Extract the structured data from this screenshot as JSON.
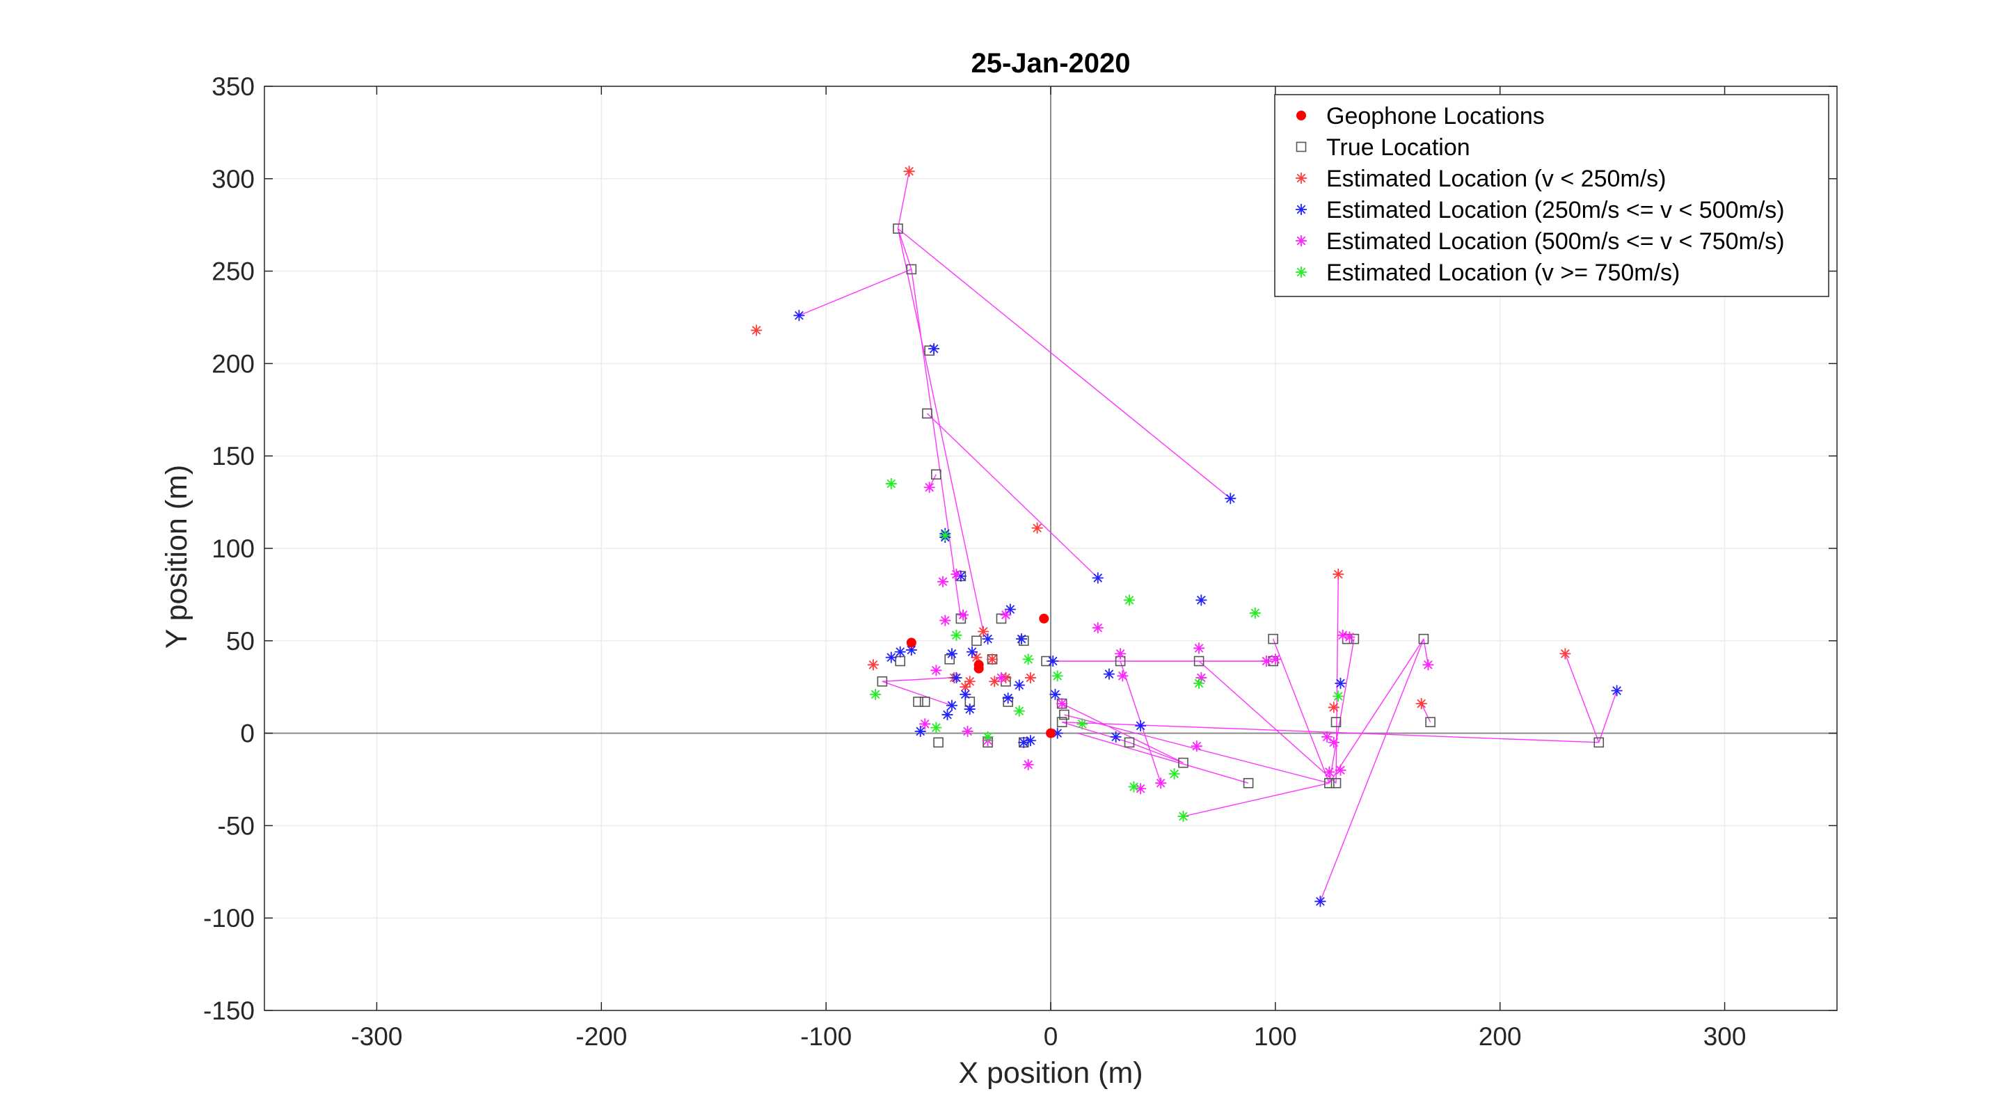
{
  "chart_data": {
    "type": "scatter",
    "title": "25-Jan-2020",
    "xlabel": "X position (m)",
    "ylabel": "Y position (m)",
    "xlim": [
      -350,
      350
    ],
    "ylim": [
      -150,
      350
    ],
    "xticks": [
      -300,
      -200,
      -100,
      0,
      100,
      200,
      300
    ],
    "yticks": [
      -150,
      -100,
      -50,
      0,
      50,
      100,
      150,
      200,
      250,
      300,
      350
    ],
    "grid": true,
    "legend_position": "top-right",
    "colors": {
      "geophone": "#ff0000",
      "true": "#555555",
      "slow": "#ff3b3b",
      "mid": "#2222ff",
      "fast": "#ff22ff",
      "veryfast": "#22ee22",
      "connector": "#ff33ff"
    },
    "legend": [
      {
        "key": "geophone",
        "label": "Geophone Locations"
      },
      {
        "key": "true",
        "label": "True Location"
      },
      {
        "key": "slow",
        "label": "Estimated Location (v < 250m/s)"
      },
      {
        "key": "mid",
        "label": "Estimated Location (250m/s <= v < 500m/s)"
      },
      {
        "key": "fast",
        "label": "Estimated Location (500m/s <= v < 750m/s)"
      },
      {
        "key": "veryfast",
        "label": "Estimated Location (v >= 750m/s)"
      }
    ],
    "geophones": [
      [
        -62,
        49
      ],
      [
        -3,
        62
      ],
      [
        -32,
        37
      ],
      [
        0,
        0
      ],
      [
        -32,
        35
      ]
    ],
    "true_locations": [
      [
        -68,
        273
      ],
      [
        -62,
        251
      ],
      [
        -54,
        207
      ],
      [
        -55,
        173
      ],
      [
        -51,
        140
      ],
      [
        -40,
        85
      ],
      [
        -40,
        62
      ],
      [
        -22,
        62
      ],
      [
        -33,
        50
      ],
      [
        -12,
        50
      ],
      [
        -26,
        40
      ],
      [
        -2,
        39
      ],
      [
        -45,
        40
      ],
      [
        -67,
        39
      ],
      [
        -75,
        28
      ],
      [
        -20,
        28
      ],
      [
        -36,
        17
      ],
      [
        -19,
        17
      ],
      [
        -56,
        17
      ],
      [
        -59,
        17
      ],
      [
        5,
        16
      ],
      [
        5,
        6
      ],
      [
        -50,
        -5
      ],
      [
        -28,
        -5
      ],
      [
        -12,
        -5
      ],
      [
        35,
        -5
      ],
      [
        59,
        -16
      ],
      [
        88,
        -27
      ],
      [
        124,
        -27
      ],
      [
        127,
        -27
      ],
      [
        127,
        6
      ],
      [
        99,
        51
      ],
      [
        132,
        51
      ],
      [
        135,
        51
      ],
      [
        166,
        51
      ],
      [
        169,
        6
      ],
      [
        244,
        -5
      ],
      [
        31,
        39
      ],
      [
        66,
        39
      ],
      [
        99,
        39
      ],
      [
        6,
        10
      ]
    ],
    "estimates": [
      {
        "g": "slow",
        "x": -63,
        "y": 304
      },
      {
        "g": "slow",
        "x": -131,
        "y": 218
      },
      {
        "g": "slow",
        "x": -6,
        "y": 111
      },
      {
        "g": "slow",
        "x": 128,
        "y": 86
      },
      {
        "g": "slow",
        "x": 229,
        "y": 43
      },
      {
        "g": "slow",
        "x": 165,
        "y": 16
      },
      {
        "g": "slow",
        "x": 126,
        "y": 14
      },
      {
        "g": "slow",
        "x": -79,
        "y": 37
      },
      {
        "g": "slow",
        "x": -30,
        "y": 55
      },
      {
        "g": "slow",
        "x": -26,
        "y": 40
      },
      {
        "g": "slow",
        "x": -20,
        "y": 30
      },
      {
        "g": "slow",
        "x": -9,
        "y": 30
      },
      {
        "g": "slow",
        "x": -25,
        "y": 28
      },
      {
        "g": "slow",
        "x": -38,
        "y": 25
      },
      {
        "g": "slow",
        "x": -33,
        "y": 41
      },
      {
        "g": "slow",
        "x": -36,
        "y": 28
      },
      {
        "g": "slow",
        "x": -43,
        "y": 30
      },
      {
        "g": "mid",
        "x": -112,
        "y": 226
      },
      {
        "g": "mid",
        "x": -52,
        "y": 208
      },
      {
        "g": "mid",
        "x": 80,
        "y": 127
      },
      {
        "g": "mid",
        "x": 21,
        "y": 84
      },
      {
        "g": "mid",
        "x": -47,
        "y": 108
      },
      {
        "g": "mid",
        "x": -47,
        "y": 106
      },
      {
        "g": "mid",
        "x": 67,
        "y": 72
      },
      {
        "g": "mid",
        "x": -18,
        "y": 67
      },
      {
        "g": "mid",
        "x": -40,
        "y": 85
      },
      {
        "g": "mid",
        "x": -28,
        "y": 51
      },
      {
        "g": "mid",
        "x": -62,
        "y": 45
      },
      {
        "g": "mid",
        "x": -67,
        "y": 44
      },
      {
        "g": "mid",
        "x": -71,
        "y": 41
      },
      {
        "g": "mid",
        "x": -44,
        "y": 43
      },
      {
        "g": "mid",
        "x": -35,
        "y": 44
      },
      {
        "g": "mid",
        "x": -13,
        "y": 51
      },
      {
        "g": "mid",
        "x": 1,
        "y": 39
      },
      {
        "g": "mid",
        "x": -42,
        "y": 30
      },
      {
        "g": "mid",
        "x": -38,
        "y": 21
      },
      {
        "g": "mid",
        "x": -36,
        "y": 13
      },
      {
        "g": "mid",
        "x": -46,
        "y": 10
      },
      {
        "g": "mid",
        "x": -44,
        "y": 15
      },
      {
        "g": "mid",
        "x": -14,
        "y": 26
      },
      {
        "g": "mid",
        "x": -19,
        "y": 19
      },
      {
        "g": "mid",
        "x": -58,
        "y": 1
      },
      {
        "g": "mid",
        "x": -12,
        "y": -5
      },
      {
        "g": "mid",
        "x": -9,
        "y": -4
      },
      {
        "g": "mid",
        "x": 40,
        "y": 4
      },
      {
        "g": "mid",
        "x": 29,
        "y": -2
      },
      {
        "g": "mid",
        "x": 26,
        "y": 32
      },
      {
        "g": "mid",
        "x": 2,
        "y": 21
      },
      {
        "g": "mid",
        "x": 129,
        "y": 27
      },
      {
        "g": "mid",
        "x": 252,
        "y": 23
      },
      {
        "g": "mid",
        "x": 120,
        "y": -91
      },
      {
        "g": "mid",
        "x": 3,
        "y": 0
      },
      {
        "g": "fast",
        "x": -54,
        "y": 133
      },
      {
        "g": "fast",
        "x": -48,
        "y": 82
      },
      {
        "g": "fast",
        "x": -47,
        "y": 61
      },
      {
        "g": "fast",
        "x": -42,
        "y": 86
      },
      {
        "g": "fast",
        "x": -39,
        "y": 64
      },
      {
        "g": "fast",
        "x": -20,
        "y": 64
      },
      {
        "g": "fast",
        "x": 21,
        "y": 57
      },
      {
        "g": "fast",
        "x": 31,
        "y": 43
      },
      {
        "g": "fast",
        "x": 66,
        "y": 46
      },
      {
        "g": "fast",
        "x": 96,
        "y": 39
      },
      {
        "g": "fast",
        "x": 130,
        "y": 53
      },
      {
        "g": "fast",
        "x": 133,
        "y": 52
      },
      {
        "g": "fast",
        "x": 168,
        "y": 37
      },
      {
        "g": "fast",
        "x": 67,
        "y": 30
      },
      {
        "g": "fast",
        "x": 32,
        "y": 31
      },
      {
        "g": "fast",
        "x": -51,
        "y": 34
      },
      {
        "g": "fast",
        "x": -22,
        "y": 30
      },
      {
        "g": "fast",
        "x": -56,
        "y": 5
      },
      {
        "g": "fast",
        "x": -37,
        "y": 1
      },
      {
        "g": "fast",
        "x": -28,
        "y": -4
      },
      {
        "g": "fast",
        "x": -10,
        "y": -17
      },
      {
        "g": "fast",
        "x": 40,
        "y": -30
      },
      {
        "g": "fast",
        "x": 49,
        "y": -27
      },
      {
        "g": "fast",
        "x": 65,
        "y": -7
      },
      {
        "g": "fast",
        "x": 123,
        "y": -2
      },
      {
        "g": "fast",
        "x": 126,
        "y": -5
      },
      {
        "g": "fast",
        "x": 124,
        "y": -21
      },
      {
        "g": "fast",
        "x": 129,
        "y": -20
      },
      {
        "g": "fast",
        "x": 100,
        "y": 40
      },
      {
        "g": "fast",
        "x": 5,
        "y": 16
      },
      {
        "g": "veryfast",
        "x": -71,
        "y": 135
      },
      {
        "g": "veryfast",
        "x": -47,
        "y": 107
      },
      {
        "g": "veryfast",
        "x": 35,
        "y": 72
      },
      {
        "g": "veryfast",
        "x": 91,
        "y": 65
      },
      {
        "g": "veryfast",
        "x": -42,
        "y": 53
      },
      {
        "g": "veryfast",
        "x": -78,
        "y": 21
      },
      {
        "g": "veryfast",
        "x": -51,
        "y": 3
      },
      {
        "g": "veryfast",
        "x": -14,
        "y": 12
      },
      {
        "g": "veryfast",
        "x": 14,
        "y": 5
      },
      {
        "g": "veryfast",
        "x": -28,
        "y": -2
      },
      {
        "g": "veryfast",
        "x": 3,
        "y": 31
      },
      {
        "g": "veryfast",
        "x": 37,
        "y": -29
      },
      {
        "g": "veryfast",
        "x": 55,
        "y": -22
      },
      {
        "g": "veryfast",
        "x": 59,
        "y": -45
      },
      {
        "g": "veryfast",
        "x": 66,
        "y": 27
      },
      {
        "g": "veryfast",
        "x": 128,
        "y": 20
      },
      {
        "g": "veryfast",
        "x": -10,
        "y": 40
      }
    ],
    "connections": [
      [
        [
          -68,
          273
        ],
        [
          -63,
          304
        ]
      ],
      [
        [
          -68,
          273
        ],
        [
          -62,
          251
        ]
      ],
      [
        [
          -62,
          251
        ],
        [
          -112,
          226
        ]
      ],
      [
        [
          -68,
          273
        ],
        [
          80,
          127
        ]
      ],
      [
        [
          -68,
          273
        ],
        [
          -30,
          55
        ]
      ],
      [
        [
          -62,
          251
        ],
        [
          -40,
          62
        ]
      ],
      [
        [
          -55,
          173
        ],
        [
          21,
          84
        ]
      ],
      [
        [
          -51,
          140
        ],
        [
          -54,
          133
        ]
      ],
      [
        [
          -75,
          28
        ],
        [
          -45,
          30
        ]
      ],
      [
        [
          -75,
          28
        ],
        [
          -44,
          15
        ]
      ],
      [
        [
          -2,
          39
        ],
        [
          96,
          39
        ]
      ],
      [
        [
          -2,
          39
        ],
        [
          99,
          39
        ]
      ],
      [
        [
          6,
          10
        ],
        [
          124,
          -27
        ]
      ],
      [
        [
          5,
          16
        ],
        [
          59,
          -16
        ]
      ],
      [
        [
          31,
          39
        ],
        [
          49,
          -27
        ]
      ],
      [
        [
          66,
          39
        ],
        [
          127,
          -27
        ]
      ],
      [
        [
          99,
          51
        ],
        [
          124,
          -27
        ]
      ],
      [
        [
          124,
          -27
        ],
        [
          135,
          51
        ]
      ],
      [
        [
          124,
          -27
        ],
        [
          166,
          51
        ]
      ],
      [
        [
          127,
          -27
        ],
        [
          128,
          86
        ]
      ],
      [
        [
          124,
          -27
        ],
        [
          59,
          -45
        ]
      ],
      [
        [
          166,
          51
        ],
        [
          120,
          -91
        ]
      ],
      [
        [
          166,
          51
        ],
        [
          168,
          37
        ]
      ],
      [
        [
          169,
          6
        ],
        [
          165,
          16
        ]
      ],
      [
        [
          244,
          -5
        ],
        [
          229,
          43
        ]
      ],
      [
        [
          244,
          -5
        ],
        [
          252,
          23
        ]
      ],
      [
        [
          5,
          6
        ],
        [
          244,
          -5
        ]
      ],
      [
        [
          5,
          6
        ],
        [
          35,
          -5
        ]
      ],
      [
        [
          35,
          -5
        ],
        [
          59,
          -16
        ]
      ],
      [
        [
          12,
          0
        ],
        [
          88,
          -27
        ]
      ]
    ]
  }
}
